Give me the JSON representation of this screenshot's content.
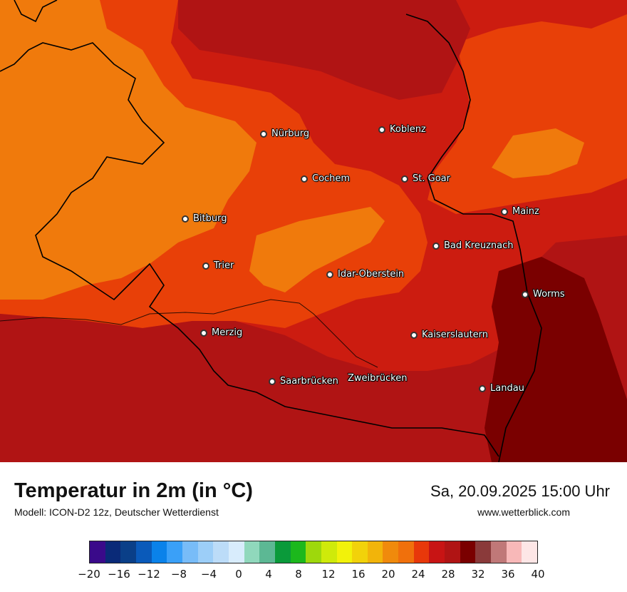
{
  "map": {
    "colors": {
      "t22_24": "#F07A0C",
      "t24_26": "#E84008",
      "t26_28": "#CC1C10",
      "t28_30": "#B01414",
      "t30_32": "#7A0000",
      "border": "#000000"
    },
    "cities": [
      {
        "name": "Nürburg"
      },
      {
        "name": "Koblenz"
      },
      {
        "name": "Cochem"
      },
      {
        "name": "St. Goar"
      },
      {
        "name": "Mainz"
      },
      {
        "name": "Bitburg"
      },
      {
        "name": "Bad Kreuznach"
      },
      {
        "name": "Trier"
      },
      {
        "name": "Idar-Oberstein"
      },
      {
        "name": "Worms"
      },
      {
        "name": "Merzig"
      },
      {
        "name": "Kaiserslautern"
      },
      {
        "name": "Saarbrücken"
      },
      {
        "name": "Zweibrücken"
      },
      {
        "name": "Landau"
      }
    ]
  },
  "header": {
    "title": "Temperatur in 2m (in °C)",
    "model": "Modell: ICON-D2 12z, Deutscher Wetterdienst",
    "datetime": "Sa, 20.09.2025 15:00 Uhr",
    "site": "www.wetterblick.com"
  },
  "legend": {
    "min": -20,
    "max": 40,
    "colors": [
      "#3a0a8a",
      "#0a2a78",
      "#0a3f88",
      "#0a5aba",
      "#0a82ea",
      "#3aa0f8",
      "#78bcf8",
      "#9ccef8",
      "#bcdcf8",
      "#d8ecfc",
      "#90d8bc",
      "#5cb894",
      "#0a9a3a",
      "#1cb81c",
      "#9ed80c",
      "#cfea0a",
      "#f2f20a",
      "#f2d20a",
      "#f2b40a",
      "#f08a0c",
      "#f0700c",
      "#e8380a",
      "#c81414",
      "#b01414",
      "#7a0000",
      "#8a3a3a",
      "#c07878",
      "#f8b8b8",
      "#fde6e6"
    ],
    "ticks": [
      "−20",
      "−16",
      "−12",
      "−8",
      "−4",
      "0",
      "4",
      "8",
      "12",
      "16",
      "20",
      "24",
      "28",
      "32",
      "36",
      "40"
    ]
  }
}
